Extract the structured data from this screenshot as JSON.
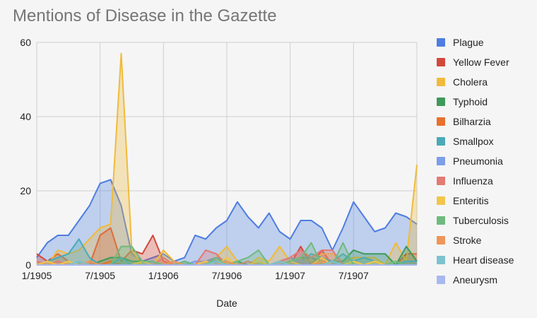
{
  "chart_data": {
    "type": "area",
    "title": "Mentions of Disease in the Gazette",
    "xlabel": "Date",
    "ylabel": "",
    "ylim": [
      0,
      60
    ],
    "yticks": [
      0,
      20,
      40,
      60
    ],
    "x_range": [
      0,
      36
    ],
    "x_ticks": [
      {
        "label": "1/1905",
        "pos": 0
      },
      {
        "label": "7/1905",
        "pos": 6
      },
      {
        "label": "1/1906",
        "pos": 12
      },
      {
        "label": "7/1906",
        "pos": 18
      },
      {
        "label": "1/1907",
        "pos": 24
      },
      {
        "label": "7/1907",
        "pos": 30
      }
    ],
    "x": [
      0,
      1,
      2,
      3,
      4,
      5,
      6,
      7,
      8,
      9,
      10,
      11,
      12,
      13,
      14,
      15,
      16,
      17,
      18,
      19,
      20,
      21,
      22,
      23,
      24,
      25,
      26,
      27,
      28,
      29,
      30,
      31,
      32,
      33,
      34,
      35,
      36
    ],
    "legend_position": "right",
    "series": [
      {
        "name": "Plague",
        "color": "#4e7ee0",
        "values": [
          2,
          6,
          8,
          8,
          12,
          16,
          22,
          23,
          16,
          3,
          1,
          2,
          3,
          1,
          2,
          8,
          7,
          10,
          12,
          17,
          13,
          10,
          14,
          9,
          7,
          12,
          12,
          10,
          4,
          10,
          17,
          13,
          9,
          10,
          14,
          13,
          11
        ]
      },
      {
        "name": "Yellow Fever",
        "color": "#d2493c",
        "values": [
          3,
          1,
          3,
          1,
          0,
          0,
          8,
          10,
          1,
          4,
          3,
          8,
          1,
          0,
          0,
          0,
          0,
          0,
          0,
          0,
          0,
          0,
          0,
          0,
          0,
          5,
          0,
          4,
          0,
          0,
          0,
          0,
          0,
          0,
          0,
          3,
          3
        ]
      },
      {
        "name": "Cholera",
        "color": "#f0bb3b",
        "values": [
          1,
          0,
          4,
          3,
          4,
          7,
          10,
          11,
          57,
          4,
          0,
          0,
          4,
          1,
          0,
          0,
          0,
          2,
          5,
          1,
          0,
          2,
          1,
          5,
          1,
          2,
          1,
          3,
          3,
          1,
          2,
          2,
          2,
          0,
          6,
          1,
          27
        ]
      },
      {
        "name": "Typhoid",
        "color": "#3e9a5a",
        "values": [
          0,
          0,
          0,
          0,
          1,
          0,
          1,
          2,
          2,
          1,
          1,
          0,
          0,
          0,
          1,
          0,
          1,
          1,
          0,
          1,
          0,
          1,
          0,
          0,
          1,
          2,
          2,
          1,
          1,
          1,
          4,
          3,
          3,
          3,
          0,
          5,
          1
        ]
      },
      {
        "name": "Bilharzia",
        "color": "#e8712e",
        "values": [
          0,
          0,
          0,
          0,
          0,
          0,
          0,
          1,
          0,
          0,
          0,
          0,
          0,
          0,
          0,
          0,
          0,
          0,
          0,
          0,
          0,
          0,
          0,
          0,
          0,
          1,
          0,
          0,
          0,
          0,
          0,
          0,
          0,
          0,
          0,
          0,
          0
        ]
      },
      {
        "name": "Smallpox",
        "color": "#4aaab8",
        "values": [
          0,
          1,
          2,
          3,
          7,
          2,
          0,
          0,
          2,
          0,
          0,
          0,
          0,
          1,
          0,
          0,
          1,
          2,
          1,
          0,
          0,
          1,
          0,
          1,
          2,
          1,
          3,
          2,
          1,
          3,
          1,
          2,
          1,
          0,
          0,
          1,
          1
        ]
      },
      {
        "name": "Pneumonia",
        "color": "#7d9ee8",
        "values": [
          0,
          0,
          0,
          0,
          0,
          0,
          0,
          0,
          0,
          0,
          0,
          1,
          0,
          0,
          0,
          1,
          1,
          1,
          0,
          0,
          0,
          0,
          0,
          0,
          1,
          1,
          0,
          1,
          0,
          0,
          0,
          0,
          0,
          0,
          0,
          0,
          0
        ]
      },
      {
        "name": "Influenza",
        "color": "#e37b73",
        "values": [
          1,
          0,
          1,
          0,
          0,
          1,
          0,
          0,
          0,
          0,
          0,
          0,
          2,
          0,
          0,
          0,
          4,
          3,
          0,
          0,
          1,
          0,
          0,
          1,
          2,
          4,
          2,
          4,
          4,
          0,
          0,
          0,
          0,
          0,
          0,
          0,
          0
        ]
      },
      {
        "name": "Enteritis",
        "color": "#f2c64b",
        "values": [
          0,
          1,
          0,
          1,
          0,
          0,
          0,
          0,
          0,
          0,
          1,
          0,
          0,
          0,
          0,
          0,
          1,
          0,
          2,
          0,
          0,
          1,
          0,
          0,
          1,
          0,
          0,
          2,
          0,
          0,
          1,
          0,
          1,
          0,
          0,
          0,
          0
        ]
      },
      {
        "name": "Tuberculosis",
        "color": "#70ba7e",
        "values": [
          0,
          0,
          0,
          0,
          0,
          0,
          0,
          0,
          5,
          5,
          1,
          1,
          0,
          0,
          1,
          0,
          0,
          2,
          0,
          1,
          2,
          4,
          0,
          0,
          1,
          2,
          6,
          0,
          0,
          6,
          0,
          0,
          0,
          0,
          1,
          0,
          0
        ]
      },
      {
        "name": "Stroke",
        "color": "#ee9657",
        "values": [
          0,
          0,
          0,
          0,
          0,
          1,
          0,
          0,
          0,
          0,
          0,
          0,
          0,
          1,
          0,
          0,
          0,
          0,
          1,
          0,
          0,
          0,
          0,
          0,
          0,
          0,
          0,
          1,
          0,
          0,
          0,
          0,
          0,
          0,
          0,
          0,
          0
        ]
      },
      {
        "name": "Heart disease",
        "color": "#7cc2cf",
        "values": [
          0,
          0,
          0,
          0,
          1,
          0,
          0,
          0,
          0,
          0,
          0,
          0,
          0,
          0,
          0,
          0,
          0,
          1,
          0,
          0,
          0,
          0,
          0,
          1,
          0,
          0,
          0,
          0,
          1,
          0,
          0,
          0,
          0,
          0,
          0,
          0,
          0
        ]
      },
      {
        "name": "Aneurysm",
        "color": "#a8b9ef",
        "values": [
          0,
          0,
          0,
          0,
          0,
          0,
          0,
          0,
          0,
          0,
          0,
          0,
          0,
          0,
          0,
          0,
          0,
          0,
          0,
          0,
          0,
          0,
          0,
          0,
          0,
          0,
          0,
          0,
          0,
          0,
          0,
          0,
          0,
          0,
          0,
          0,
          0
        ]
      }
    ]
  }
}
